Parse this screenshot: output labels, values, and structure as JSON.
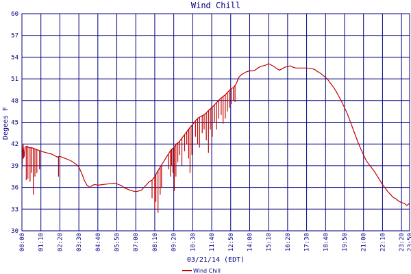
{
  "chart_data": {
    "type": "line",
    "title": "Wind Chill",
    "xlabel": "03/21/14 (EDT)",
    "ylabel": "Degees F",
    "ylim": [
      30,
      60
    ],
    "yticks": [
      30,
      33,
      36,
      39,
      42,
      45,
      48,
      51,
      54,
      57,
      60
    ],
    "x_minutes_range": [
      0,
      1430
    ],
    "xticks": [
      {
        "minute": 0,
        "label": "00:00"
      },
      {
        "minute": 70,
        "label": "01:10"
      },
      {
        "minute": 140,
        "label": "02:20"
      },
      {
        "minute": 210,
        "label": "03:30"
      },
      {
        "minute": 280,
        "label": "04:40"
      },
      {
        "minute": 350,
        "label": "05:50"
      },
      {
        "minute": 420,
        "label": "07:00"
      },
      {
        "minute": 490,
        "label": "08:10"
      },
      {
        "minute": 560,
        "label": "09:20"
      },
      {
        "minute": 630,
        "label": "10:30"
      },
      {
        "minute": 700,
        "label": "11:40"
      },
      {
        "minute": 770,
        "label": "12:50"
      },
      {
        "minute": 840,
        "label": "14:00"
      },
      {
        "minute": 910,
        "label": "15:10"
      },
      {
        "minute": 980,
        "label": "16:20"
      },
      {
        "minute": 1050,
        "label": "17:30"
      },
      {
        "minute": 1120,
        "label": "18:40"
      },
      {
        "minute": 1190,
        "label": "19:50"
      },
      {
        "minute": 1260,
        "label": "21:00"
      },
      {
        "minute": 1330,
        "label": "22:10"
      },
      {
        "minute": 1400,
        "label": "23:20"
      },
      {
        "minute": 1430,
        "label": "23:50"
      }
    ],
    "grid": true,
    "legend_position": "bottom-center",
    "series": [
      {
        "name": "Wind Chill",
        "color": "#c00000",
        "points": [
          [
            0,
            38.5
          ],
          [
            4,
            42.0
          ],
          [
            8,
            40.2
          ],
          [
            12,
            41.6
          ],
          [
            20,
            41.7
          ],
          [
            25,
            41.5
          ],
          [
            35,
            41.5
          ],
          [
            50,
            41.3
          ],
          [
            70,
            41.0
          ],
          [
            90,
            40.8
          ],
          [
            110,
            40.6
          ],
          [
            120,
            40.4
          ],
          [
            130,
            40.2
          ],
          [
            140,
            40.3
          ],
          [
            160,
            40.0
          ],
          [
            180,
            39.7
          ],
          [
            200,
            39.2
          ],
          [
            210,
            38.8
          ],
          [
            220,
            38.0
          ],
          [
            230,
            37.0
          ],
          [
            240,
            36.3
          ],
          [
            250,
            36.0
          ],
          [
            260,
            36.3
          ],
          [
            270,
            36.4
          ],
          [
            280,
            36.3
          ],
          [
            300,
            36.4
          ],
          [
            320,
            36.5
          ],
          [
            340,
            36.6
          ],
          [
            350,
            36.5
          ],
          [
            370,
            36.2
          ],
          [
            380,
            35.9
          ],
          [
            400,
            35.6
          ],
          [
            420,
            35.4
          ],
          [
            440,
            35.6
          ],
          [
            455,
            36.2
          ],
          [
            470,
            36.8
          ],
          [
            480,
            37.0
          ],
          [
            490,
            37.5
          ],
          [
            500,
            38.2
          ],
          [
            510,
            38.8
          ],
          [
            520,
            39.4
          ],
          [
            530,
            40.0
          ],
          [
            540,
            40.6
          ],
          [
            550,
            41.2
          ],
          [
            560,
            41.5
          ],
          [
            570,
            42.0
          ],
          [
            580,
            42.3
          ],
          [
            590,
            42.8
          ],
          [
            600,
            43.3
          ],
          [
            610,
            43.8
          ],
          [
            620,
            44.3
          ],
          [
            630,
            44.7
          ],
          [
            640,
            45.2
          ],
          [
            650,
            45.6
          ],
          [
            660,
            45.8
          ],
          [
            670,
            46.0
          ],
          [
            680,
            46.3
          ],
          [
            690,
            46.7
          ],
          [
            700,
            47.0
          ],
          [
            710,
            47.4
          ],
          [
            720,
            47.8
          ],
          [
            730,
            48.2
          ],
          [
            740,
            48.5
          ],
          [
            750,
            48.8
          ],
          [
            760,
            49.2
          ],
          [
            770,
            49.6
          ],
          [
            780,
            49.8
          ],
          [
            790,
            50.3
          ],
          [
            800,
            51.2
          ],
          [
            810,
            51.6
          ],
          [
            820,
            51.8
          ],
          [
            830,
            52.0
          ],
          [
            840,
            52.1
          ],
          [
            850,
            52.1
          ],
          [
            860,
            52.2
          ],
          [
            870,
            52.5
          ],
          [
            880,
            52.7
          ],
          [
            890,
            52.8
          ],
          [
            900,
            52.9
          ],
          [
            910,
            53.1
          ],
          [
            920,
            52.9
          ],
          [
            930,
            52.7
          ],
          [
            940,
            52.4
          ],
          [
            950,
            52.2
          ],
          [
            960,
            52.4
          ],
          [
            970,
            52.6
          ],
          [
            980,
            52.7
          ],
          [
            990,
            52.8
          ],
          [
            1000,
            52.6
          ],
          [
            1010,
            52.5
          ],
          [
            1020,
            52.5
          ],
          [
            1030,
            52.5
          ],
          [
            1040,
            52.5
          ],
          [
            1050,
            52.5
          ],
          [
            1070,
            52.4
          ],
          [
            1080,
            52.3
          ],
          [
            1090,
            52.0
          ],
          [
            1100,
            51.8
          ],
          [
            1110,
            51.5
          ],
          [
            1120,
            51.2
          ],
          [
            1130,
            50.8
          ],
          [
            1140,
            50.3
          ],
          [
            1150,
            49.8
          ],
          [
            1160,
            49.2
          ],
          [
            1170,
            48.5
          ],
          [
            1180,
            47.8
          ],
          [
            1190,
            47.0
          ],
          [
            1200,
            46.2
          ],
          [
            1210,
            45.2
          ],
          [
            1220,
            44.2
          ],
          [
            1230,
            43.2
          ],
          [
            1240,
            42.2
          ],
          [
            1250,
            41.3
          ],
          [
            1260,
            40.5
          ],
          [
            1270,
            39.7
          ],
          [
            1280,
            39.2
          ],
          [
            1290,
            38.7
          ],
          [
            1300,
            38.2
          ],
          [
            1310,
            37.6
          ],
          [
            1320,
            37.0
          ],
          [
            1330,
            36.4
          ],
          [
            1340,
            35.9
          ],
          [
            1350,
            35.4
          ],
          [
            1360,
            35.0
          ],
          [
            1370,
            34.6
          ],
          [
            1380,
            34.4
          ],
          [
            1390,
            34.1
          ],
          [
            1400,
            33.9
          ],
          [
            1410,
            33.8
          ],
          [
            1420,
            33.5
          ],
          [
            1430,
            33.8
          ]
        ],
        "dips": [
          [
            6,
            40.0
          ],
          [
            16,
            37.0
          ],
          [
            22,
            37.2
          ],
          [
            30,
            36.8
          ],
          [
            36,
            38.0
          ],
          [
            42,
            35.0
          ],
          [
            48,
            37.5
          ],
          [
            55,
            38.0
          ],
          [
            65,
            38.5
          ],
          [
            135,
            37.5
          ],
          [
            480,
            34.5
          ],
          [
            490,
            33.0
          ],
          [
            494,
            34.0
          ],
          [
            502,
            32.5
          ],
          [
            510,
            35.0
          ],
          [
            515,
            36.0
          ],
          [
            540,
            38.5
          ],
          [
            548,
            37.5
          ],
          [
            552,
            39.0
          ],
          [
            557,
            38.0
          ],
          [
            562,
            35.5
          ],
          [
            568,
            37.5
          ],
          [
            575,
            39.5
          ],
          [
            582,
            40.5
          ],
          [
            590,
            39.0
          ],
          [
            600,
            41.0
          ],
          [
            608,
            42.0
          ],
          [
            615,
            40.0
          ],
          [
            620,
            38.0
          ],
          [
            627,
            40.5
          ],
          [
            640,
            43.0
          ],
          [
            648,
            42.0
          ],
          [
            655,
            41.5
          ],
          [
            665,
            43.5
          ],
          [
            672,
            44.0
          ],
          [
            680,
            42.5
          ],
          [
            688,
            40.8
          ],
          [
            695,
            44.0
          ],
          [
            702,
            43.0
          ],
          [
            710,
            45.0
          ],
          [
            718,
            44.0
          ],
          [
            726,
            45.5
          ],
          [
            735,
            46.0
          ],
          [
            742,
            44.8
          ],
          [
            750,
            45.5
          ],
          [
            758,
            46.5
          ],
          [
            765,
            47.0
          ],
          [
            772,
            47.5
          ],
          [
            780,
            48.0
          ],
          [
            786,
            47.8
          ]
        ]
      }
    ]
  }
}
